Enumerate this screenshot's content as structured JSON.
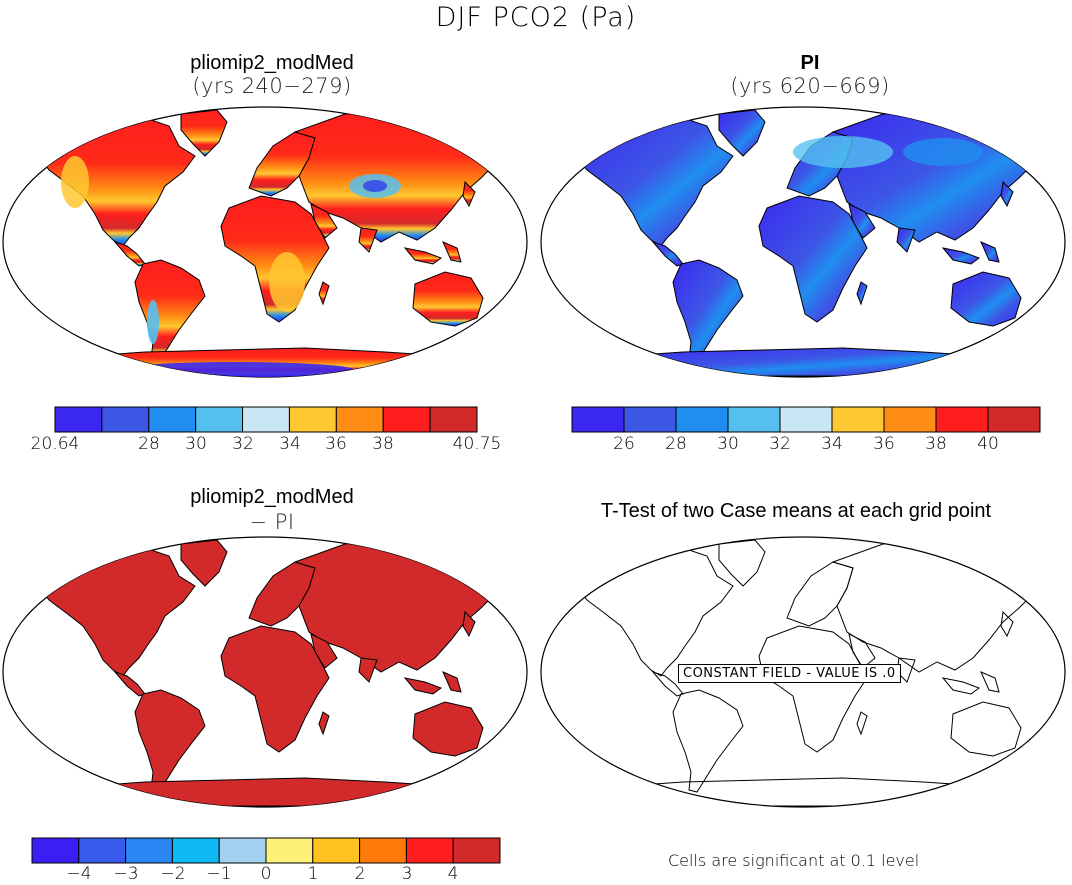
{
  "figure": {
    "title": "DJF PCO2 (Pa)",
    "colors": {
      "ocean": "#ffffff",
      "coast": "#000000",
      "panel3_fill": "#d22a2a",
      "antarctica_blue": "#4a2cf0"
    }
  },
  "panels": [
    {
      "title": "pliomip2_modMed",
      "subtitle": "(yrs 240−279)",
      "field": "pliocene-pco2",
      "colorbar": {
        "colors": [
          "#3b28f0",
          "#3d56e6",
          "#1f8ef0",
          "#55c0f0",
          "#c8e6f4",
          "#ffc830",
          "#ff8c14",
          "#ff1e1e",
          "#d22a2a"
        ],
        "tick_labels": [
          "20.64",
          "28",
          "30",
          "32",
          "34",
          "36",
          "38",
          "40.75"
        ]
      }
    },
    {
      "title": "PI",
      "subtitle": "(yrs 620−669)",
      "field": "preindustrial-pco2",
      "colorbar": {
        "colors": [
          "#3b28f0",
          "#3d56e6",
          "#1f8ef0",
          "#55c0f0",
          "#c8e6f4",
          "#ffc830",
          "#ff8c14",
          "#ff1e1e",
          "#d22a2a"
        ],
        "tick_labels": [
          "26",
          "28",
          "30",
          "32",
          "34",
          "36",
          "38",
          "40"
        ]
      }
    },
    {
      "title": "pliomip2_modMed",
      "subtitle": "− PI",
      "field": "difference",
      "colorbar": {
        "colors": [
          "#3c1ef5",
          "#3a5aeb",
          "#2a86f2",
          "#10b8f4",
          "#a0d2f0",
          "#fff07a",
          "#ffc21e",
          "#ff7a0a",
          "#ff1e1e",
          "#d22a2a"
        ],
        "tick_labels": [
          "−4",
          "−3",
          "−2",
          "−1",
          "0",
          "1",
          "2",
          "3",
          "4"
        ]
      }
    },
    {
      "title": "T-Test of two Case means at each grid point",
      "field": "t-test",
      "constant_label": "CONSTANT FIELD - VALUE IS .0",
      "note": "Cells are significant at 0.1 level"
    }
  ]
}
